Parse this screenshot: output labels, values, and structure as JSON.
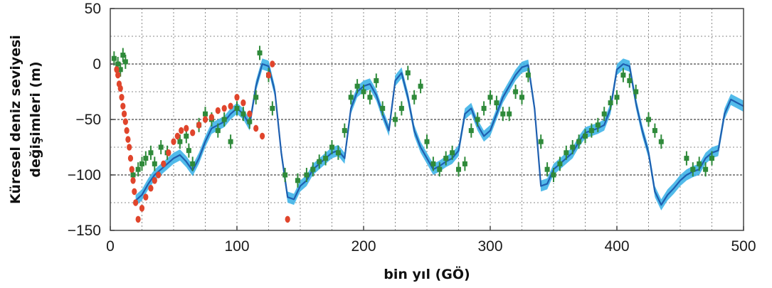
{
  "chart_data": {
    "type": "line",
    "title": "",
    "xlabel": "bin yıl (GÖ)",
    "ylabel_lines": [
      "Küresel deniz seviyesi",
      "değişimleri (m)"
    ],
    "xlim": [
      0,
      500
    ],
    "ylim": [
      -150,
      50
    ],
    "x_ticks": [
      0,
      100,
      200,
      300,
      400,
      500
    ],
    "y_ticks": [
      -150,
      -100,
      -50,
      0,
      50
    ],
    "x_tick_labels": [
      "0",
      "100",
      "200",
      "300",
      "400",
      "500"
    ],
    "y_tick_labels": [
      "−150",
      "−100",
      "−50",
      "0",
      "50"
    ],
    "grid": true,
    "colors": {
      "curve": "#1f5fb0",
      "band": "#3fb4e8",
      "green_points": "#2f8a3a",
      "red_points": "#e0452c",
      "grid": "#8a8a8a"
    },
    "series": [
      {
        "kind": "curve-with-band",
        "band_halfwidth": 5,
        "x": [
          20,
          25,
          30,
          35,
          40,
          45,
          50,
          55,
          60,
          65,
          70,
          75,
          80,
          85,
          90,
          95,
          100,
          105,
          110,
          115,
          120,
          125,
          130,
          135,
          140,
          145,
          150,
          155,
          160,
          165,
          170,
          175,
          180,
          185,
          190,
          195,
          200,
          205,
          210,
          215,
          220,
          225,
          230,
          235,
          240,
          245,
          250,
          255,
          260,
          265,
          270,
          275,
          280,
          285,
          290,
          295,
          300,
          305,
          310,
          315,
          320,
          325,
          330,
          335,
          340,
          345,
          350,
          355,
          360,
          365,
          370,
          375,
          380,
          385,
          390,
          395,
          400,
          405,
          410,
          415,
          420,
          425,
          430,
          435,
          440,
          445,
          450,
          455,
          460,
          465,
          470,
          475,
          480,
          485,
          490,
          495,
          500
        ],
        "y": [
          -123,
          -118,
          -108,
          -100,
          -95,
          -90,
          -85,
          -82,
          -88,
          -96,
          -85,
          -70,
          -58,
          -55,
          -52,
          -45,
          -40,
          -45,
          -55,
          -20,
          0,
          -2,
          -25,
          -80,
          -120,
          -122,
          -110,
          -105,
          -95,
          -90,
          -85,
          -80,
          -78,
          -85,
          -40,
          -25,
          -20,
          -18,
          -28,
          -45,
          -60,
          -15,
          -8,
          -30,
          -60,
          -75,
          -85,
          -95,
          -92,
          -88,
          -85,
          -78,
          -45,
          -40,
          -55,
          -65,
          -60,
          -45,
          -30,
          -20,
          -10,
          -3,
          -1,
          -40,
          -110,
          -108,
          -95,
          -90,
          -85,
          -80,
          -70,
          -62,
          -60,
          -58,
          -55,
          -40,
          -5,
          0,
          -2,
          -35,
          -60,
          -80,
          -115,
          -127,
          -118,
          -112,
          -105,
          -100,
          -97,
          -95,
          -85,
          -80,
          -78,
          -45,
          -32,
          -35,
          -38
        ]
      },
      {
        "kind": "points",
        "color": "green",
        "x": [
          3,
          6,
          8,
          10,
          12,
          18,
          22,
          25,
          28,
          32,
          35,
          40,
          45,
          55,
          60,
          62,
          65,
          70,
          75,
          80,
          85,
          90,
          95,
          100,
          105,
          110,
          115,
          118,
          125,
          128,
          138,
          148,
          155,
          160,
          165,
          170,
          175,
          180,
          185,
          190,
          195,
          200,
          205,
          210,
          215,
          225,
          230,
          235,
          240,
          245,
          250,
          255,
          260,
          265,
          270,
          275,
          280,
          285,
          290,
          295,
          300,
          305,
          310,
          315,
          320,
          325,
          330,
          340,
          345,
          350,
          355,
          360,
          365,
          370,
          375,
          380,
          385,
          390,
          395,
          400,
          405,
          410,
          415,
          425,
          430,
          435,
          455,
          460,
          465,
          470,
          475
        ],
        "y": [
          5,
          0,
          -5,
          8,
          2,
          -100,
          -95,
          -90,
          -85,
          -80,
          -90,
          -75,
          -80,
          -70,
          -65,
          -78,
          -90,
          -55,
          -45,
          -50,
          -60,
          -50,
          -70,
          -40,
          -45,
          -52,
          -30,
          10,
          -10,
          -40,
          -100,
          -105,
          -100,
          -95,
          -88,
          -85,
          -75,
          -80,
          -60,
          -30,
          -20,
          -25,
          -30,
          -15,
          -40,
          -50,
          -40,
          -8,
          -30,
          -20,
          -70,
          -90,
          -95,
          -85,
          -80,
          -95,
          -90,
          -60,
          -50,
          -40,
          -30,
          -35,
          -45,
          -45,
          -25,
          -30,
          -10,
          -70,
          -95,
          -100,
          -90,
          -80,
          -75,
          -70,
          -65,
          -60,
          -55,
          -45,
          -35,
          -30,
          -10,
          -15,
          -25,
          -50,
          -60,
          -70,
          -85,
          -95,
          -90,
          -95,
          -85
        ]
      },
      {
        "kind": "points",
        "color": "red",
        "x": [
          5,
          6,
          7,
          8,
          9,
          10,
          11,
          12,
          13,
          14,
          15,
          16,
          17,
          18,
          19,
          20,
          22,
          25,
          28,
          32,
          35,
          38,
          42,
          46,
          50,
          53,
          56,
          60,
          65,
          70,
          75,
          80,
          85,
          90,
          95,
          100,
          105,
          110,
          115,
          120,
          125,
          128,
          140
        ],
        "y": [
          -5,
          -10,
          -18,
          -22,
          -30,
          -38,
          -45,
          -52,
          -60,
          -68,
          -75,
          -85,
          -95,
          -105,
          -115,
          -125,
          -140,
          -130,
          -120,
          -112,
          -105,
          -100,
          -90,
          -80,
          -70,
          -65,
          -60,
          -58,
          -62,
          -55,
          -50,
          -48,
          -42,
          -40,
          -38,
          -30,
          -35,
          -45,
          -58,
          -65,
          -10,
          0,
          -140
        ]
      }
    ]
  }
}
